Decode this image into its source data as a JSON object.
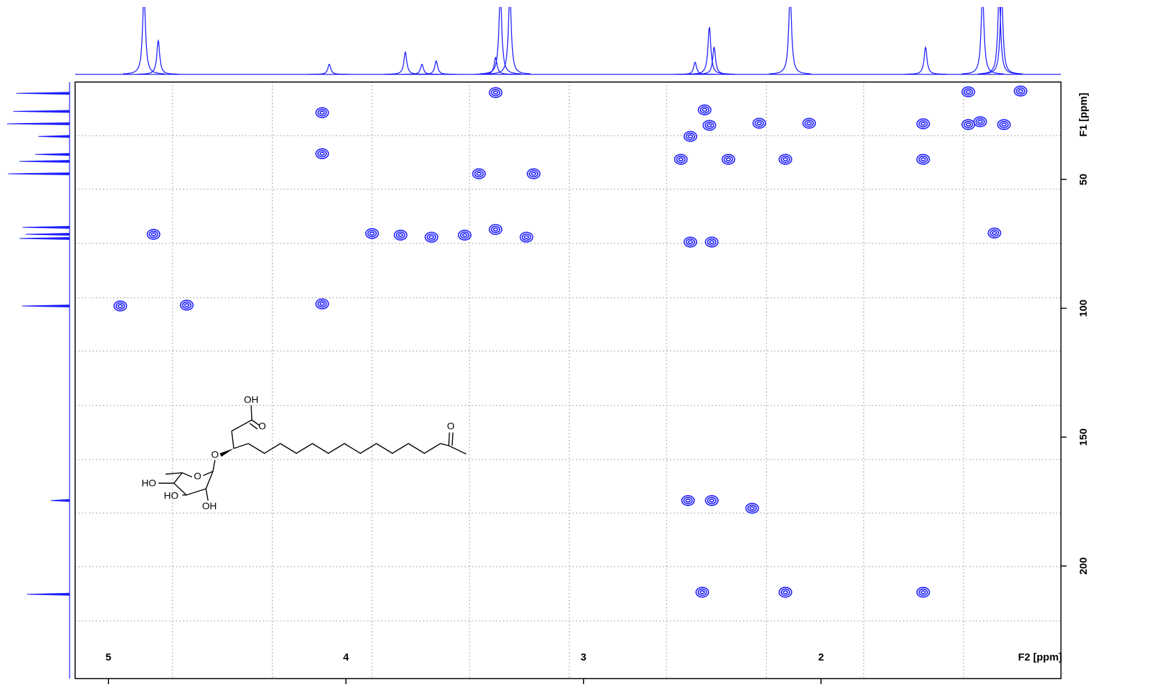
{
  "chart_data": {
    "type": "contour",
    "xlabel": "F2 [ppm]",
    "ylabel": "F1 [ppm]",
    "xlim": [
      5.14,
      0.99
    ],
    "ylim": [
      12.2,
      243.7
    ],
    "xticks": [
      5,
      4,
      3,
      2
    ],
    "yticks": [
      50,
      100,
      150,
      200
    ],
    "xgrid": [
      4.73,
      4.31,
      3.89,
      3.48,
      3.06,
      2.65,
      2.23,
      1.82,
      1.4
    ],
    "ygrid": [
      33,
      53.8,
      74.8,
      95.9,
      116.6,
      137.7,
      158.7,
      179.5,
      200.3,
      221.3
    ],
    "color": "#1f1fff",
    "cross_peaks": {
      "x": [
        3.37,
        1.38,
        1.16,
        4.1,
        2.49,
        2.47,
        2.55,
        2.26,
        2.05,
        1.57,
        1.38,
        1.33,
        1.23,
        4.1,
        2.59,
        2.39,
        2.15,
        1.57,
        3.44,
        3.21,
        4.81,
        3.89,
        3.77,
        3.64,
        3.5,
        3.37,
        3.24,
        2.55,
        2.46,
        1.27,
        4.95,
        4.67,
        4.1,
        2.56,
        2.46,
        2.29,
        2.5,
        2.15,
        1.57
      ],
      "y": [
        16.3,
        16,
        15.7,
        24.1,
        23,
        29,
        33.3,
        28.2,
        28.2,
        28.4,
        28.7,
        27.6,
        28.7,
        40,
        42.2,
        42.2,
        42.2,
        42.2,
        47.8,
        47.8,
        71.3,
        71,
        71.6,
        72.4,
        71.6,
        69.4,
        72.4,
        74.3,
        74.3,
        70.8,
        99.1,
        98.8,
        98.3,
        174.6,
        174.6,
        177.6,
        210.2,
        210.2,
        210.2
      ]
    },
    "f2_projection": {
      "ppm": [
        4.85,
        4.79,
        4.07,
        3.75,
        3.68,
        3.62,
        3.37,
        3.35,
        3.31,
        2.53,
        2.47,
        2.45,
        2.13,
        1.56,
        1.32,
        1.25,
        1.24
      ],
      "intensity": [
        120,
        50,
        15,
        33,
        15,
        20,
        25,
        120,
        120,
        18,
        70,
        40,
        120,
        40,
        120,
        120,
        120
      ]
    },
    "f1_projection": {
      "ppm": [
        16.6,
        23.6,
        28.4,
        33.3,
        40.3,
        43,
        47.8,
        68.6,
        71.3,
        72.9,
        99.1,
        174.6,
        211
      ],
      "intensity": [
        85,
        90,
        100,
        50,
        55,
        80,
        98,
        75,
        70,
        80,
        76,
        30,
        68
      ]
    }
  },
  "structure_labels": [
    "OH",
    "O",
    "O",
    "O",
    "HO",
    "HO",
    "OH"
  ]
}
